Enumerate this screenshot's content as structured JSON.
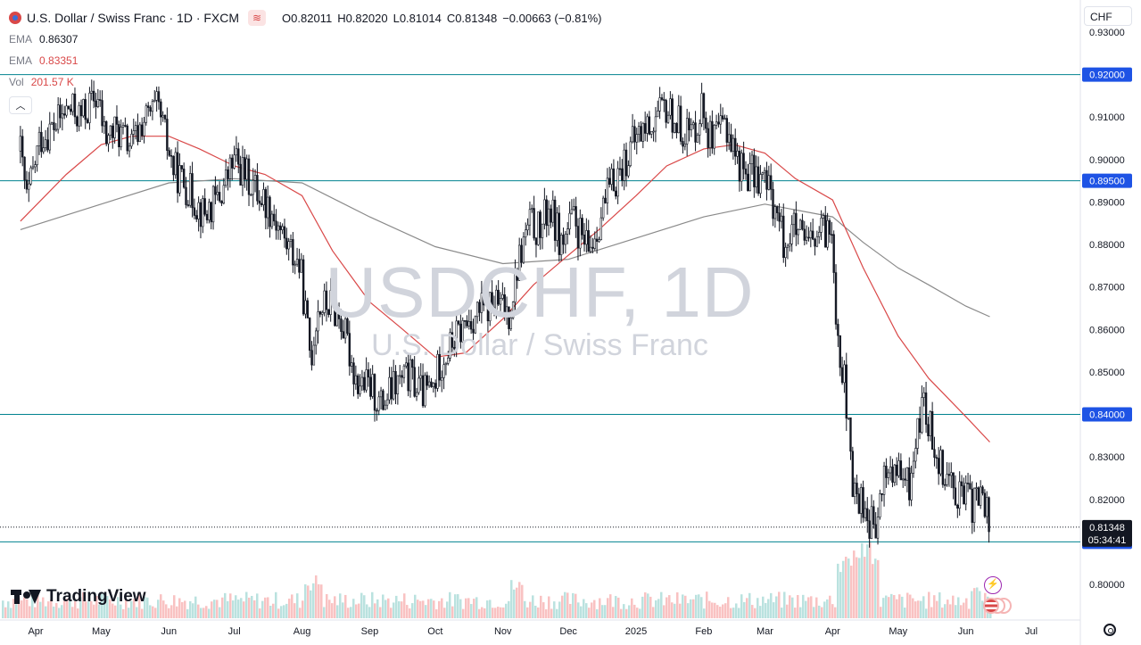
{
  "header": {
    "title": "U.S. Dollar / Swiss Franc · 1D · FXCM",
    "ohlc": [
      {
        "k": "O",
        "v": "0.82011"
      },
      {
        "k": "H",
        "v": "0.82020"
      },
      {
        "k": "L",
        "v": "0.81014"
      },
      {
        "k": "C",
        "v": "0.81348"
      }
    ],
    "change": "−0.00663 (−0.81%)",
    "currency": "CHF"
  },
  "indicators": [
    {
      "name": "EMA",
      "value": "0.86307"
    },
    {
      "name": "EMA",
      "value": "0.83351"
    },
    {
      "name": "Vol",
      "value": "201.57 K"
    }
  ],
  "watermark": {
    "symbol": "USDCHF, 1D",
    "description": "U.S. Dollar / Swiss Franc"
  },
  "branding": {
    "name": "TradingView"
  },
  "colors": {
    "up": "#131722",
    "down": "#131722",
    "ema_fast": "#d94848",
    "ema_slow": "#8a8a8a",
    "hline": "#00838f",
    "vol_up": "#b2dfdb",
    "vol_down": "#f8bbbb",
    "price_label_bg": "#1e53e5",
    "last_label_bg": "#131722"
  },
  "icons": {
    "flash": "lightning-icon",
    "events": "us-flag-events-icon",
    "settings": "gear-icon"
  },
  "chart_data": {
    "type": "candlestick",
    "y_axis_ticks": [
      "0.80000",
      "0.81000",
      "0.82000",
      "0.83000",
      "0.84000",
      "0.85000",
      "0.86000",
      "0.87000",
      "0.88000",
      "0.89000",
      "0.90000",
      "0.91000",
      "0.92000",
      "0.93000"
    ],
    "y_axis_top_partial": "0.93000",
    "x_axis_labels": [
      "Apr",
      "May",
      "Jun",
      "Jul",
      "Aug",
      "Sep",
      "Oct",
      "Nov",
      "Dec",
      "2025",
      "Feb",
      "Mar",
      "Apr",
      "May",
      "Jun",
      "Jul"
    ],
    "ylim": [
      0.7983,
      0.9343
    ],
    "horizontal_lines": [
      {
        "label": "0.92000",
        "value": 0.92
      },
      {
        "label": "0.89500",
        "value": 0.895
      },
      {
        "label": "0.84000",
        "value": 0.84
      },
      {
        "label": "0.81000",
        "value": 0.81
      }
    ],
    "last_price": {
      "label": "0.81348",
      "value": 0.81348,
      "countdown": "05:34:41"
    },
    "close_path": [
      [
        "2024-03-25",
        0.902
      ],
      [
        "2024-03-28",
        0.89
      ],
      [
        "2024-04-03",
        0.905
      ],
      [
        "2024-04-10",
        0.908
      ],
      [
        "2024-04-16",
        0.912
      ],
      [
        "2024-04-22",
        0.91
      ],
      [
        "2024-04-29",
        0.915
      ],
      [
        "2024-05-03",
        0.905
      ],
      [
        "2024-05-08",
        0.907
      ],
      [
        "2024-05-15",
        0.903
      ],
      [
        "2024-05-20",
        0.909
      ],
      [
        "2024-05-27",
        0.912
      ],
      [
        "2024-06-03",
        0.898
      ],
      [
        "2024-06-10",
        0.893
      ],
      [
        "2024-06-17",
        0.887
      ],
      [
        "2024-06-24",
        0.891
      ],
      [
        "2024-07-01",
        0.9
      ],
      [
        "2024-07-05",
        0.897
      ],
      [
        "2024-07-11",
        0.893
      ],
      [
        "2024-07-18",
        0.888
      ],
      [
        "2024-07-25",
        0.88
      ],
      [
        "2024-07-31",
        0.875
      ],
      [
        "2024-08-05",
        0.853
      ],
      [
        "2024-08-08",
        0.865
      ],
      [
        "2024-08-14",
        0.866
      ],
      [
        "2024-08-19",
        0.862
      ],
      [
        "2024-08-26",
        0.848
      ],
      [
        "2024-09-02",
        0.846
      ],
      [
        "2024-09-06",
        0.842
      ],
      [
        "2024-09-13",
        0.847
      ],
      [
        "2024-09-19",
        0.849
      ],
      [
        "2024-09-25",
        0.845
      ],
      [
        "2024-09-30",
        0.846
      ],
      [
        "2024-10-03",
        0.852
      ],
      [
        "2024-10-09",
        0.857
      ],
      [
        "2024-10-16",
        0.862
      ],
      [
        "2024-10-23",
        0.865
      ],
      [
        "2024-10-29",
        0.866
      ],
      [
        "2024-11-04",
        0.864
      ],
      [
        "2024-11-08",
        0.876
      ],
      [
        "2024-11-13",
        0.885
      ],
      [
        "2024-11-18",
        0.883
      ],
      [
        "2024-11-22",
        0.889
      ],
      [
        "2024-11-28",
        0.88
      ],
      [
        "2024-12-03",
        0.886
      ],
      [
        "2024-12-10",
        0.878
      ],
      [
        "2024-12-16",
        0.887
      ],
      [
        "2024-12-20",
        0.893
      ],
      [
        "2024-12-27",
        0.9
      ],
      [
        "2025-01-02",
        0.906
      ],
      [
        "2025-01-09",
        0.909
      ],
      [
        "2025-01-15",
        0.912
      ],
      [
        "2025-01-21",
        0.908
      ],
      [
        "2025-01-27",
        0.906
      ],
      [
        "2025-01-31",
        0.913
      ],
      [
        "2025-02-05",
        0.903
      ],
      [
        "2025-02-11",
        0.909
      ],
      [
        "2025-02-17",
        0.899
      ],
      [
        "2025-02-21",
        0.897
      ],
      [
        "2025-02-27",
        0.896
      ],
      [
        "2025-03-04",
        0.892
      ],
      [
        "2025-03-10",
        0.88
      ],
      [
        "2025-03-14",
        0.884
      ],
      [
        "2025-03-20",
        0.879
      ],
      [
        "2025-03-26",
        0.882
      ],
      [
        "2025-04-01",
        0.884
      ],
      [
        "2025-04-03",
        0.86
      ],
      [
        "2025-04-07",
        0.845
      ],
      [
        "2025-04-10",
        0.822
      ],
      [
        "2025-04-14",
        0.82
      ],
      [
        "2025-04-18",
        0.815
      ],
      [
        "2025-04-21",
        0.812
      ],
      [
        "2025-04-25",
        0.827
      ],
      [
        "2025-04-30",
        0.826
      ],
      [
        "2025-05-06",
        0.823
      ],
      [
        "2025-05-12",
        0.843
      ],
      [
        "2025-05-16",
        0.836
      ],
      [
        "2025-05-21",
        0.828
      ],
      [
        "2025-05-27",
        0.823
      ],
      [
        "2025-05-30",
        0.821
      ],
      [
        "2025-06-04",
        0.819
      ],
      [
        "2025-06-09",
        0.821
      ],
      [
        "2025-06-12",
        0.8135
      ]
    ],
    "ema_fast_path": [
      [
        "2024-03-25",
        0.8855
      ],
      [
        "2024-04-15",
        0.8965
      ],
      [
        "2024-05-01",
        0.9035
      ],
      [
        "2024-05-15",
        0.9055
      ],
      [
        "2024-06-01",
        0.9055
      ],
      [
        "2024-06-15",
        0.9025
      ],
      [
        "2024-07-01",
        0.8985
      ],
      [
        "2024-07-15",
        0.8965
      ],
      [
        "2024-08-01",
        0.8915
      ],
      [
        "2024-08-15",
        0.8785
      ],
      [
        "2024-09-01",
        0.8665
      ],
      [
        "2024-09-15",
        0.8605
      ],
      [
        "2024-10-01",
        0.8535
      ],
      [
        "2024-10-15",
        0.8545
      ],
      [
        "2024-11-01",
        0.8625
      ],
      [
        "2024-11-15",
        0.8705
      ],
      [
        "2024-12-01",
        0.8775
      ],
      [
        "2024-12-15",
        0.8835
      ],
      [
        "2025-01-01",
        0.8915
      ],
      [
        "2025-01-15",
        0.8985
      ],
      [
        "2025-02-01",
        0.9025
      ],
      [
        "2025-02-15",
        0.9035
      ],
      [
        "2025-03-01",
        0.9015
      ],
      [
        "2025-03-15",
        0.8955
      ],
      [
        "2025-04-01",
        0.8905
      ],
      [
        "2025-04-15",
        0.8745
      ],
      [
        "2025-05-01",
        0.8585
      ],
      [
        "2025-05-15",
        0.8485
      ],
      [
        "2025-06-01",
        0.8395
      ],
      [
        "2025-06-12",
        0.8335
      ]
    ],
    "ema_slow_path": [
      [
        "2024-03-25",
        0.8835
      ],
      [
        "2024-05-01",
        0.8895
      ],
      [
        "2024-06-01",
        0.8945
      ],
      [
        "2024-07-01",
        0.8955
      ],
      [
        "2024-08-01",
        0.8945
      ],
      [
        "2024-09-01",
        0.8865
      ],
      [
        "2024-10-01",
        0.8795
      ],
      [
        "2024-11-01",
        0.8755
      ],
      [
        "2024-12-01",
        0.8765
      ],
      [
        "2025-01-01",
        0.8815
      ],
      [
        "2025-02-01",
        0.8865
      ],
      [
        "2025-03-01",
        0.8895
      ],
      [
        "2025-04-01",
        0.8865
      ],
      [
        "2025-04-15",
        0.8805
      ],
      [
        "2025-05-01",
        0.8745
      ],
      [
        "2025-05-15",
        0.8705
      ],
      [
        "2025-06-01",
        0.8655
      ],
      [
        "2025-06-12",
        0.863
      ]
    ],
    "volume_note": "Vol 201.57 K shown for last bar; volume histogram along bottom"
  }
}
